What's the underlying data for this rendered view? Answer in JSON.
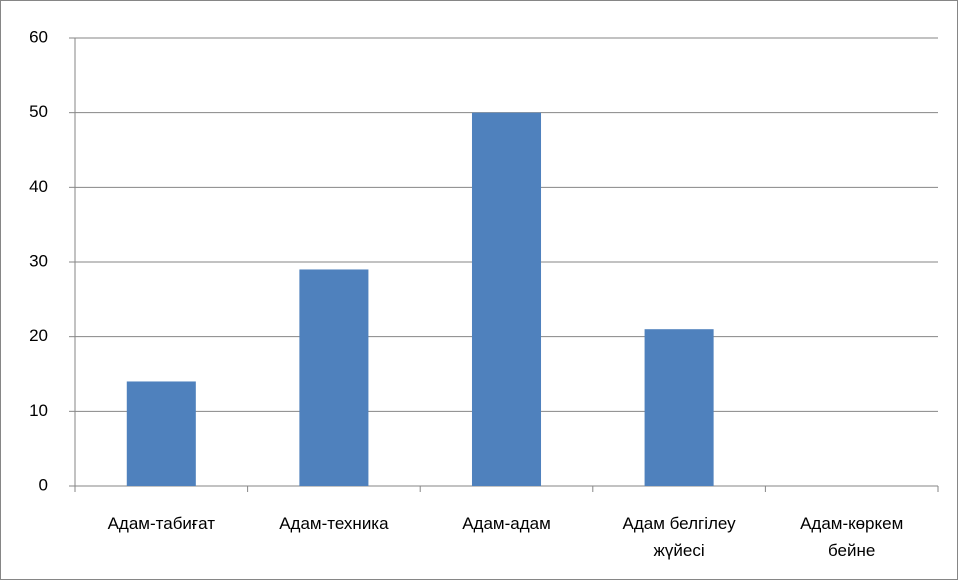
{
  "chart_data": {
    "type": "bar",
    "categories": [
      "Адам-табиғат",
      "Адам-техника",
      "Адам-адам",
      "Адам белгілеу жүйесі",
      "Адам-көркем бейне"
    ],
    "values": [
      14,
      29,
      50,
      21,
      0
    ],
    "color": "#4f81bd",
    "ylim": [
      0,
      60
    ],
    "yticks": [
      0,
      10,
      20,
      30,
      40,
      50,
      60
    ],
    "grid": true
  }
}
